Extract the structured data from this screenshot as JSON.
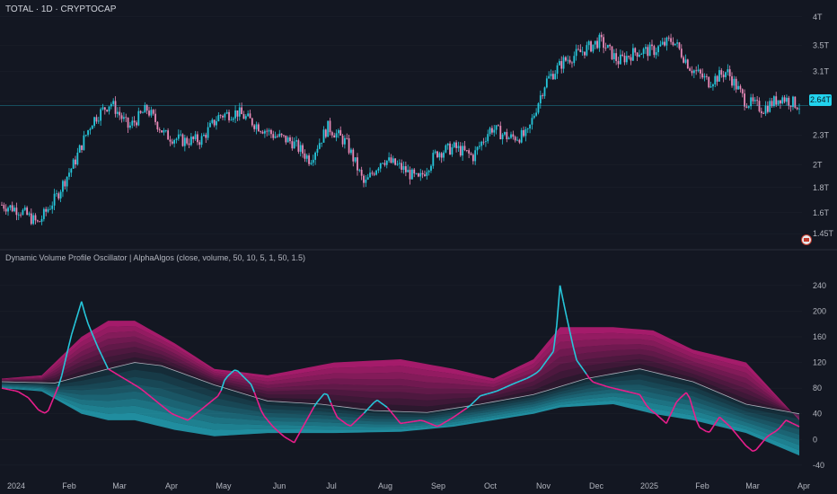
{
  "symbol_title": "TOTAL · 1D · CRYPTOCAP",
  "indicator_title": "Dynamic Volume Profile Oscillator | AlphaAlgos (close, volume, 50, 10, 5, 1, 50, 1.5)",
  "last_price_label": "2.64T",
  "colors": {
    "background": "#131722",
    "bull": "#26c6da",
    "bear": "#e91e8c",
    "neutral": "#cfd3dc",
    "grid": "#1e222d",
    "price_line": "#22d3ee"
  },
  "chart_data": [
    {
      "type": "candlestick",
      "title": "TOTAL · 1D · CRYPTOCAP",
      "y_ticks": [
        "4T",
        "3.5T",
        "3.1T",
        "2.7T",
        "2.3T",
        "2T",
        "1.8T",
        "1.6T",
        "1.45T"
      ],
      "y_tick_values": [
        4.0,
        3.5,
        3.1,
        2.7,
        2.3,
        2.0,
        1.8,
        1.6,
        1.45
      ],
      "ylim": [
        1.38,
        4.15
      ],
      "scale": "log",
      "last_price": 2.64,
      "x_ticks": [
        "2024",
        "Feb",
        "Mar",
        "Apr",
        "May",
        "Jun",
        "Jul",
        "Aug",
        "Sep",
        "Oct",
        "Nov",
        "Dec",
        "2025",
        "Feb",
        "Mar",
        "Apr"
      ],
      "close_path": [
        [
          "2024",
          1.66
        ],
        [
          "Jan-15",
          1.62
        ],
        [
          "Jan-24",
          1.52
        ],
        [
          "Feb",
          1.72
        ],
        [
          "Feb-15",
          2.02
        ],
        [
          "Mar",
          2.46
        ],
        [
          "Mar-14",
          2.68
        ],
        [
          "Mar-20",
          2.38
        ],
        [
          "Apr",
          2.6
        ],
        [
          "Apr-15",
          2.3
        ],
        [
          "Apr-30",
          2.24
        ],
        [
          "May",
          2.25
        ],
        [
          "May-20",
          2.52
        ],
        [
          "Jun",
          2.56
        ],
        [
          "Jun-15",
          2.42
        ],
        [
          "Jun-30",
          2.3
        ],
        [
          "Jul",
          2.23
        ],
        [
          "Jul-05",
          2.05
        ],
        [
          "Jul-22",
          2.39
        ],
        [
          "Aug",
          2.22
        ],
        [
          "Aug-05",
          1.82
        ],
        [
          "Aug-20",
          2.06
        ],
        [
          "Sep",
          1.98
        ],
        [
          "Sep-06",
          1.86
        ],
        [
          "Sep-20",
          2.12
        ],
        [
          "Oct",
          2.17
        ],
        [
          "Oct-10",
          2.08
        ],
        [
          "Oct-30",
          2.38
        ],
        [
          "Nov",
          2.27
        ],
        [
          "Nov-05",
          2.3
        ],
        [
          "Nov-12",
          2.95
        ],
        [
          "Nov-25",
          3.25
        ],
        [
          "Dec",
          3.4
        ],
        [
          "Dec-05",
          3.58
        ],
        [
          "Dec-20",
          3.25
        ],
        [
          "2025",
          3.4
        ],
        [
          "Jan-06",
          3.42
        ],
        [
          "Jan-20",
          3.6
        ],
        [
          "Feb",
          3.15
        ],
        [
          "Feb-03",
          2.95
        ],
        [
          "Feb-20",
          3.1
        ],
        [
          "Mar",
          2.7
        ],
        [
          "Mar-10",
          2.6
        ],
        [
          "Mar-20",
          2.75
        ],
        [
          "Apr",
          2.64
        ]
      ]
    },
    {
      "type": "line",
      "title": "Dynamic Volume Profile Oscillator | AlphaAlgos (close, volume, 50, 10, 5, 1, 50, 1.5)",
      "y_ticks": [
        "240",
        "200",
        "160",
        "120",
        "80",
        "40",
        "0",
        "-40"
      ],
      "y_tick_values": [
        240,
        200,
        160,
        120,
        80,
        40,
        0,
        -40
      ],
      "ylim": [
        -50,
        265
      ],
      "x_ticks": [
        "2024",
        "Feb",
        "Mar",
        "Apr",
        "May",
        "Jun",
        "Jul",
        "Aug",
        "Sep",
        "Oct",
        "Nov",
        "Dec",
        "2025",
        "Feb",
        "Mar",
        "Apr"
      ],
      "series": [
        {
          "values_points": [
            [
              0,
              80
            ],
            [
              12,
              75
            ],
            [
              20,
              65
            ],
            [
              28,
              45
            ],
            [
              34,
              40
            ],
            [
              44,
              90
            ],
            [
              52,
              160
            ],
            [
              60,
              215
            ],
            [
              64,
              185
            ],
            [
              72,
              145
            ],
            [
              80,
              110
            ],
            [
              92,
              95
            ],
            [
              104,
              80
            ],
            [
              116,
              60
            ],
            [
              128,
              40
            ],
            [
              140,
              30
            ],
            [
              152,
              50
            ],
            [
              164,
              70
            ],
            [
              168,
              95
            ],
            [
              176,
              110
            ],
            [
              188,
              85
            ],
            [
              196,
              40
            ],
            [
              204,
              20
            ],
            [
              212,
              5
            ],
            [
              220,
              -5
            ],
            [
              228,
              25
            ],
            [
              236,
              55
            ],
            [
              244,
              75
            ],
            [
              252,
              35
            ],
            [
              262,
              20
            ],
            [
              272,
              40
            ],
            [
              282,
              62
            ],
            [
              290,
              50
            ],
            [
              300,
              25
            ],
            [
              316,
              30
            ],
            [
              328,
              20
            ],
            [
              340,
              35
            ],
            [
              352,
              52
            ],
            [
              360,
              68
            ],
            [
              372,
              75
            ],
            [
              384,
              86
            ],
            [
              396,
              96
            ],
            [
              404,
              106
            ],
            [
              416,
              140
            ],
            [
              420,
              240
            ],
            [
              424,
              200
            ],
            [
              432,
              125
            ],
            [
              444,
              90
            ],
            [
              456,
              82
            ],
            [
              468,
              76
            ],
            [
              480,
              70
            ],
            [
              486,
              50
            ],
            [
              492,
              40
            ],
            [
              500,
              25
            ],
            [
              508,
              60
            ],
            [
              516,
              75
            ],
            [
              524,
              20
            ],
            [
              532,
              10
            ],
            [
              540,
              35
            ],
            [
              548,
              20
            ],
            [
              560,
              -10
            ],
            [
              566,
              -20
            ],
            [
              576,
              5
            ],
            [
              584,
              15
            ],
            [
              590,
              30
            ],
            [
              600,
              20
            ]
          ]
        },
        {
          "values_points": [
            [
              0,
              90
            ],
            [
              40,
              88
            ],
            [
              80,
              110
            ],
            [
              100,
              120
            ],
            [
              120,
              115
            ],
            [
              160,
              85
            ],
            [
              200,
              60
            ],
            [
              240,
              55
            ],
            [
              280,
              45
            ],
            [
              320,
              42
            ],
            [
              360,
              55
            ],
            [
              400,
              70
            ],
            [
              440,
              95
            ],
            [
              480,
              110
            ],
            [
              520,
              90
            ],
            [
              560,
              55
            ],
            [
              600,
              40
            ]
          ]
        }
      ],
      "band_upper": [
        [
          0,
          95
        ],
        [
          30,
          100
        ],
        [
          60,
          160
        ],
        [
          80,
          185
        ],
        [
          100,
          185
        ],
        [
          130,
          150
        ],
        [
          160,
          110
        ],
        [
          200,
          100
        ],
        [
          250,
          120
        ],
        [
          300,
          125
        ],
        [
          340,
          110
        ],
        [
          370,
          95
        ],
        [
          400,
          125
        ],
        [
          420,
          175
        ],
        [
          460,
          175
        ],
        [
          490,
          170
        ],
        [
          520,
          140
        ],
        [
          560,
          120
        ],
        [
          600,
          30
        ]
      ],
      "band_lower": [
        [
          0,
          80
        ],
        [
          30,
          75
        ],
        [
          60,
          40
        ],
        [
          80,
          30
        ],
        [
          100,
          30
        ],
        [
          130,
          15
        ],
        [
          160,
          5
        ],
        [
          200,
          10
        ],
        [
          250,
          10
        ],
        [
          300,
          12
        ],
        [
          340,
          20
        ],
        [
          370,
          30
        ],
        [
          400,
          40
        ],
        [
          420,
          50
        ],
        [
          460,
          55
        ],
        [
          490,
          40
        ],
        [
          520,
          30
        ],
        [
          560,
          10
        ],
        [
          600,
          -25
        ]
      ]
    }
  ]
}
